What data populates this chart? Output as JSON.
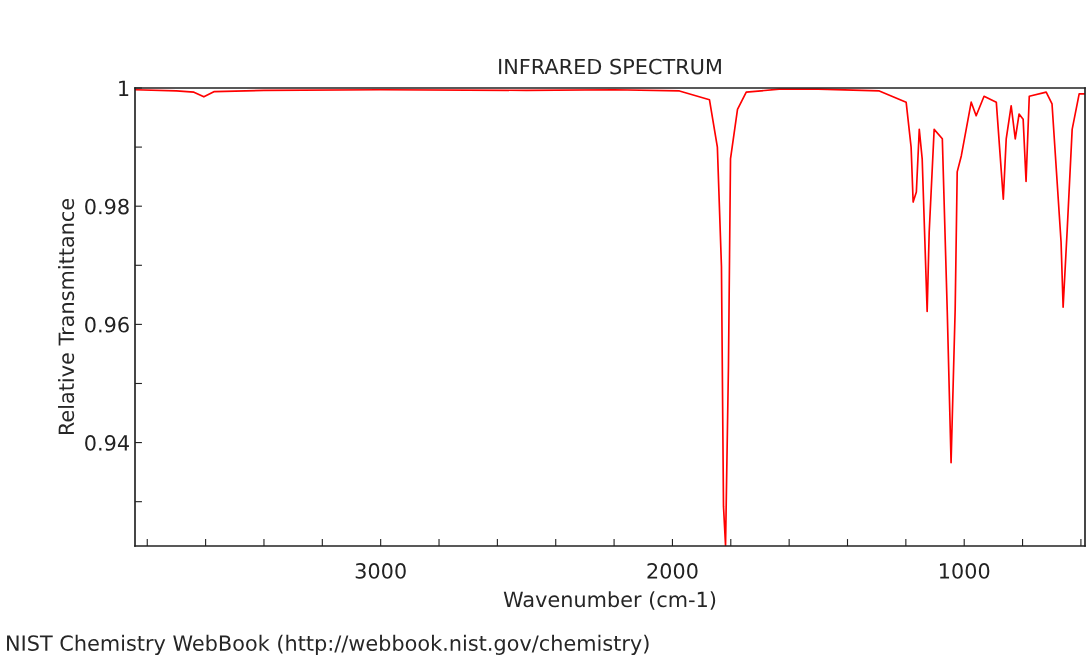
{
  "chart_data": {
    "type": "line",
    "title": "INFRARED SPECTRUM",
    "xlabel": "Wavenumber (cm-1)",
    "ylabel": "Relative Transmittance",
    "annotations": [
      "NIST Chemistry WebBook (http://webbook.nist.gov/chemistry)"
    ],
    "series": [
      {
        "color": "#ff0000",
        "x": [
          3842,
          3700,
          3640,
          3606,
          3570,
          3400,
          3000,
          2500,
          2200,
          1976,
          1873,
          1846,
          1832,
          1825,
          1818,
          1808,
          1801,
          1777,
          1747,
          1634,
          1500,
          1291,
          1199,
          1182,
          1175,
          1164,
          1154,
          1144,
          1127,
          1120,
          1103,
          1075,
          1058,
          1045,
          1031,
          1024,
          1010,
          976,
          959,
          932,
          890,
          866,
          856,
          839,
          825,
          812,
          798,
          788,
          777,
          719,
          699,
          668,
          661,
          647,
          630,
          606,
          586
        ],
        "values": [
          0.9997,
          0.9995,
          0.9993,
          0.9985,
          0.9994,
          0.9996,
          0.9997,
          0.9996,
          0.9997,
          0.9995,
          0.998,
          0.99,
          0.9698,
          0.9292,
          0.9226,
          0.9529,
          0.988,
          0.9964,
          0.9993,
          0.9998,
          0.9998,
          0.9995,
          0.9976,
          0.99,
          0.9807,
          0.9824,
          0.993,
          0.988,
          0.9622,
          0.9756,
          0.993,
          0.9914,
          0.962,
          0.9366,
          0.9625,
          0.9858,
          0.9885,
          0.9976,
          0.9953,
          0.9986,
          0.9976,
          0.9812,
          0.9914,
          0.997,
          0.9914,
          0.9956,
          0.9947,
          0.9842,
          0.9986,
          0.9993,
          0.9973,
          0.9739,
          0.9629,
          0.976,
          0.993,
          0.999,
          0.999
        ]
      }
    ],
    "xlim": [
      3842,
      586
    ],
    "ylim": [
      0.9225,
      1.0
    ],
    "xticks": [
      {
        "value": 3800,
        "label": null
      },
      {
        "value": 3600,
        "label": null
      },
      {
        "value": 3400,
        "label": null
      },
      {
        "value": 3200,
        "label": null
      },
      3000,
      {
        "value": 2800,
        "label": null
      },
      {
        "value": 2600,
        "label": null
      },
      {
        "value": 2400,
        "label": null
      },
      {
        "value": 2200,
        "label": null
      },
      2000,
      {
        "value": 1800,
        "label": null
      },
      {
        "value": 1600,
        "label": null
      },
      {
        "value": 1400,
        "label": null
      },
      {
        "value": 1200,
        "label": null
      },
      1000,
      {
        "value": 800,
        "label": null
      },
      {
        "value": 600,
        "label": null
      }
    ],
    "yticks": [
      {
        "value": 0.93,
        "label": null
      },
      0.94,
      {
        "value": 0.95,
        "label": null
      },
      0.96,
      {
        "value": 0.97,
        "label": null
      },
      0.98,
      {
        "value": 0.99,
        "label": null
      },
      1
    ],
    "grid": false,
    "legend": false
  }
}
